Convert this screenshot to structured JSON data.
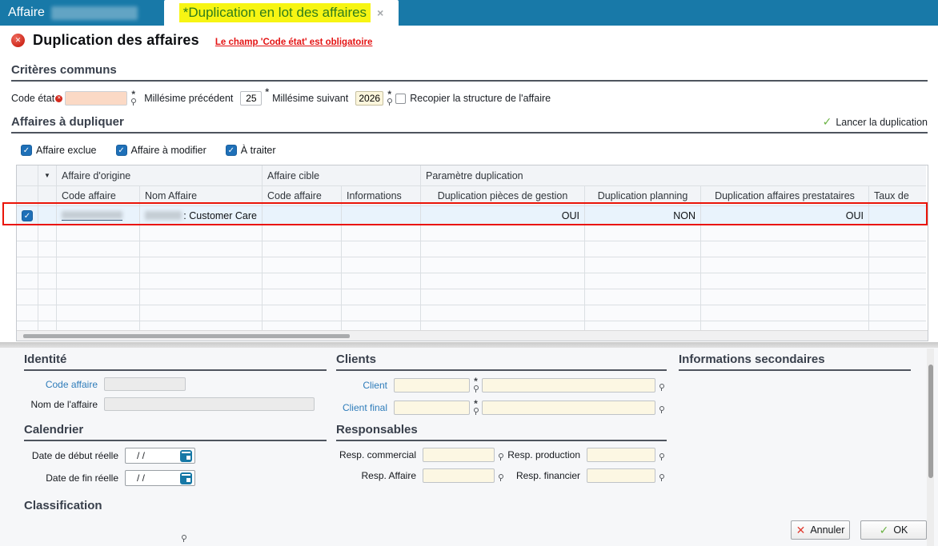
{
  "tabs": {
    "tab1_label": "Affaire",
    "tab2_label": "*Duplication en lot des affaires"
  },
  "icons": {
    "close": "×",
    "check": "✓",
    "cross": "✕",
    "filter_arrow": "▼",
    "required": "*"
  },
  "header": {
    "title": "Duplication des affaires",
    "error_link": "Le champ 'Code état' est obligatoire"
  },
  "criteres": {
    "heading": "Critères communs",
    "code_etat_label": "Code état",
    "code_etat_value": "",
    "millesime_precedent_label": "Millésime précédent",
    "millesime_precedent_value": "25",
    "millesime_suivant_label": "Millésime suivant",
    "millesime_suivant_value": "2026",
    "recopier_label": "Recopier la structure de l'affaire"
  },
  "affaires": {
    "heading": "Affaires à dupliquer",
    "lancer_label": "Lancer la duplication",
    "filters": [
      "Affaire exclue",
      "Affaire à modifier",
      "À traiter"
    ]
  },
  "table": {
    "groups": [
      "Affaire d'origine",
      "Affaire cible",
      "Paramètre duplication"
    ],
    "columns": [
      "Code affaire",
      "Nom Affaire",
      "Code affaire",
      "Informations",
      "Duplication pièces de gestion",
      "Duplication planning",
      "Duplication affaires prestataires",
      "Taux de"
    ],
    "row": {
      "nom_affaire_suffix": ": Customer Care",
      "duplication_pieces": "OUI",
      "duplication_planning": "NON",
      "duplication_prestataires": "OUI"
    }
  },
  "panel": {
    "identite": {
      "heading": "Identité",
      "code_affaire_label": "Code affaire",
      "nom_label": "Nom de l'affaire"
    },
    "clients": {
      "heading": "Clients",
      "client_label": "Client",
      "client_final_label": "Client final"
    },
    "infos": {
      "heading": "Informations secondaires"
    },
    "calendrier": {
      "heading": "Calendrier",
      "debut_label": "Date de début réelle",
      "fin_label": "Date de fin réelle",
      "date_value": "/  /"
    },
    "responsables": {
      "heading": "Responsables",
      "commercial_label": "Resp. commercial",
      "production_label": "Resp. production",
      "affaire_label": "Resp. Affaire",
      "financier_label": "Resp. financier"
    },
    "classification": {
      "heading": "Classification"
    }
  },
  "footer": {
    "cancel_label": "Annuler",
    "ok_label": "OK"
  },
  "colors": {
    "tabbar_blue": "#1879a8",
    "highlight_yellow": "#f7f513",
    "highlight_green_text": "#2e7d1b",
    "error_red": "#e41414",
    "annotation_red": "#ea1408",
    "checkbox_blue": "#1e70b8",
    "required_field_pink": "#fbd9c5",
    "lookup_field_cream": "#fcf7e3",
    "row_selected_blue": "#e9f3fc"
  }
}
